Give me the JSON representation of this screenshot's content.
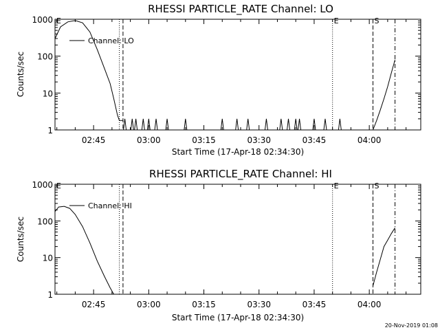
{
  "footer_timestamp": "20-Nov-2019 01:08",
  "chart_data": [
    {
      "type": "line",
      "title": "RHESSI PARTICLE_RATE Channel: LO",
      "xlabel": "Start Time (17-Apr-18 02:34:30)",
      "ylabel": "Counts/sec",
      "yscale": "log",
      "ylim": [
        1,
        1000
      ],
      "xlim": [
        "02:34:30",
        "04:14:00"
      ],
      "x_ticks": [
        "02:45",
        "03:00",
        "03:15",
        "03:30",
        "03:45",
        "04:00"
      ],
      "y_ticks": [
        "1",
        "10",
        "100",
        "1000"
      ],
      "legend": {
        "position": "top-left",
        "entries": [
          "Channel: LO"
        ]
      },
      "markers": [
        {
          "time": "02:34:30",
          "style": "dotted",
          "label": "E"
        },
        {
          "time": "02:52:00",
          "style": "dotted",
          "label": ""
        },
        {
          "time": "02:53:00",
          "style": "dashed",
          "label": ""
        },
        {
          "time": "03:50:00",
          "style": "dotted",
          "label": "E"
        },
        {
          "time": "04:01:00",
          "style": "dashed",
          "label": "S"
        },
        {
          "time": "04:07:00",
          "style": "dashdot",
          "label": ""
        }
      ],
      "series": [
        {
          "name": "Channel: LO",
          "segments": [
            {
              "x": [
                "02:34:30",
                "02:36:00",
                "02:38:00",
                "02:40:00",
                "02:42:00",
                "02:44:00",
                "02:46:00",
                "02:48:00",
                "02:49:30",
                "02:50:30",
                "02:51:30",
                "02:52:00",
                "02:53:00"
              ],
              "y": [
                300,
                620,
                850,
                920,
                800,
                450,
                150,
                45,
                18,
                7,
                2.5,
                1.8,
                1.8
              ]
            },
            {
              "x": [
                "04:01:00",
                "04:02:00",
                "04:03:00",
                "04:04:00",
                "04:05:00",
                "04:06:00",
                "04:07:00"
              ],
              "y": [
                1,
                1.8,
                3.5,
                7,
                15,
                35,
                80
              ]
            }
          ],
          "spikes": [
            "02:53:30",
            "02:55:30",
            "02:56:30",
            "02:58:30",
            "03:00:00",
            "03:02:00",
            "03:05:00",
            "03:10:00",
            "03:20:00",
            "03:24:00",
            "03:27:00",
            "03:32:00",
            "03:36:00",
            "03:38:00",
            "03:40:00",
            "03:41:00",
            "03:45:00",
            "03:48:00",
            "03:52:00"
          ]
        }
      ]
    },
    {
      "type": "line",
      "title": "RHESSI PARTICLE_RATE Channel: HI",
      "xlabel": "Start Time (17-Apr-18 02:34:30)",
      "ylabel": "Counts/sec",
      "yscale": "log",
      "ylim": [
        1,
        1000
      ],
      "xlim": [
        "02:34:30",
        "04:14:00"
      ],
      "x_ticks": [
        "02:45",
        "03:00",
        "03:15",
        "03:30",
        "03:45",
        "04:00"
      ],
      "y_ticks": [
        "1",
        "10",
        "100",
        "1000"
      ],
      "legend": {
        "position": "top-left",
        "entries": [
          "Channel: HI"
        ]
      },
      "markers": [
        {
          "time": "02:34:30",
          "style": "dotted",
          "label": "E"
        },
        {
          "time": "02:52:00",
          "style": "dotted",
          "label": ""
        },
        {
          "time": "02:53:00",
          "style": "dashed",
          "label": ""
        },
        {
          "time": "03:50:00",
          "style": "dotted",
          "label": "E"
        },
        {
          "time": "04:01:00",
          "style": "dashed",
          "label": "S"
        },
        {
          "time": "04:07:00",
          "style": "dashdot",
          "label": ""
        }
      ],
      "series": [
        {
          "name": "Channel: HI",
          "segments": [
            {
              "x": [
                "02:34:30",
                "02:35:30",
                "02:37:00",
                "02:38:30",
                "02:40:00",
                "02:42:00",
                "02:44:00",
                "02:46:00",
                "02:48:00",
                "02:49:30",
                "02:50:30"
              ],
              "y": [
                180,
                240,
                250,
                220,
                150,
                70,
                25,
                8,
                3,
                1.5,
                1
              ]
            },
            {
              "x": [
                "04:01:00",
                "04:02:00",
                "04:03:00",
                "04:04:00",
                "04:05:00",
                "04:06:00",
                "04:07:00"
              ],
              "y": [
                1.7,
                4,
                9,
                20,
                30,
                45,
                65
              ]
            }
          ],
          "spikes": []
        }
      ]
    }
  ]
}
